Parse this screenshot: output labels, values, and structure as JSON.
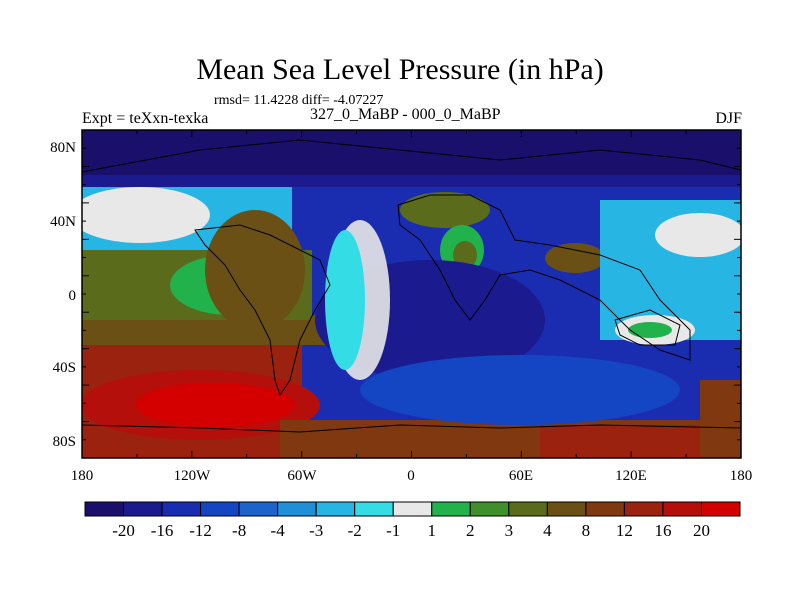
{
  "title": "Mean Sea Level Pressure (in hPa)",
  "stats": "rmsd= 11.4228 diff= -4.07227",
  "experiment": "Expt = teXxn-texka",
  "comparison": "327_0_MaBP - 000_0_MaBP",
  "season": "DJF",
  "lat_ticks": [
    "80N",
    "40N",
    "0",
    "40S",
    "80S"
  ],
  "lon_ticks": [
    "180",
    "120W",
    "60W",
    "0",
    "60E",
    "120E",
    "180"
  ],
  "colorbar": {
    "labels": [
      "-20",
      "-16",
      "-12",
      "-8",
      "-4",
      "-3",
      "-2",
      "-1",
      "1",
      "2",
      "3",
      "4",
      "8",
      "12",
      "16",
      "20"
    ],
    "colors": [
      "#1a0f6b",
      "#1b1a8f",
      "#1a2db0",
      "#1446c4",
      "#1c64cc",
      "#1f8fd8",
      "#27b6e3",
      "#34dde6",
      "#e8e8e8",
      "#22b24c",
      "#3f8f2a",
      "#5a6b1c",
      "#6b5015",
      "#7f3810",
      "#9a220e",
      "#b50f0b",
      "#d40000"
    ]
  }
}
